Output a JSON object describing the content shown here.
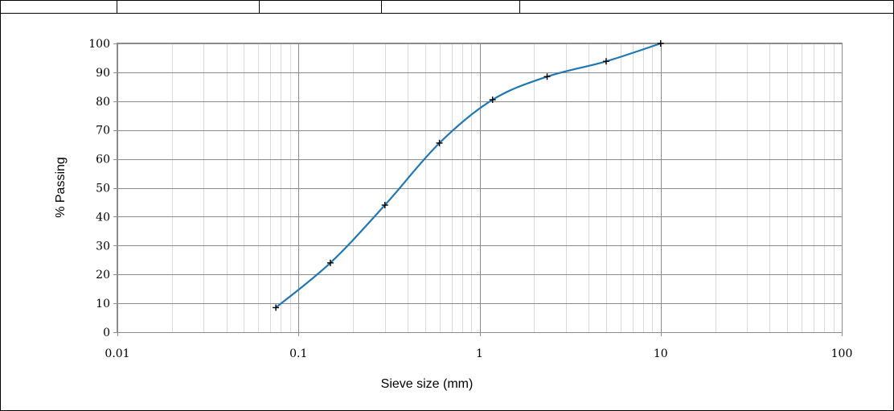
{
  "chart_data": {
    "type": "line",
    "title": "",
    "xlabel": "Sieve size (mm)",
    "ylabel": "% Passing",
    "x_scale": "log",
    "xlim": [
      0.01,
      100
    ],
    "ylim": [
      0,
      100
    ],
    "x_ticks": [
      "0.01",
      "0.1",
      "1",
      "10",
      "100"
    ],
    "y_ticks": [
      "0",
      "10",
      "20",
      "30",
      "40",
      "50",
      "60",
      "70",
      "80",
      "90",
      "100"
    ],
    "grid": true,
    "legend": "none",
    "series": [
      {
        "color": "#1f77b4",
        "marker": "+",
        "x": [
          0.075,
          0.15,
          0.3,
          0.6,
          1.18,
          2.36,
          5,
          10
        ],
        "y": [
          8.5,
          24,
          44,
          65.5,
          80.5,
          88.5,
          93.8,
          100
        ]
      }
    ]
  }
}
